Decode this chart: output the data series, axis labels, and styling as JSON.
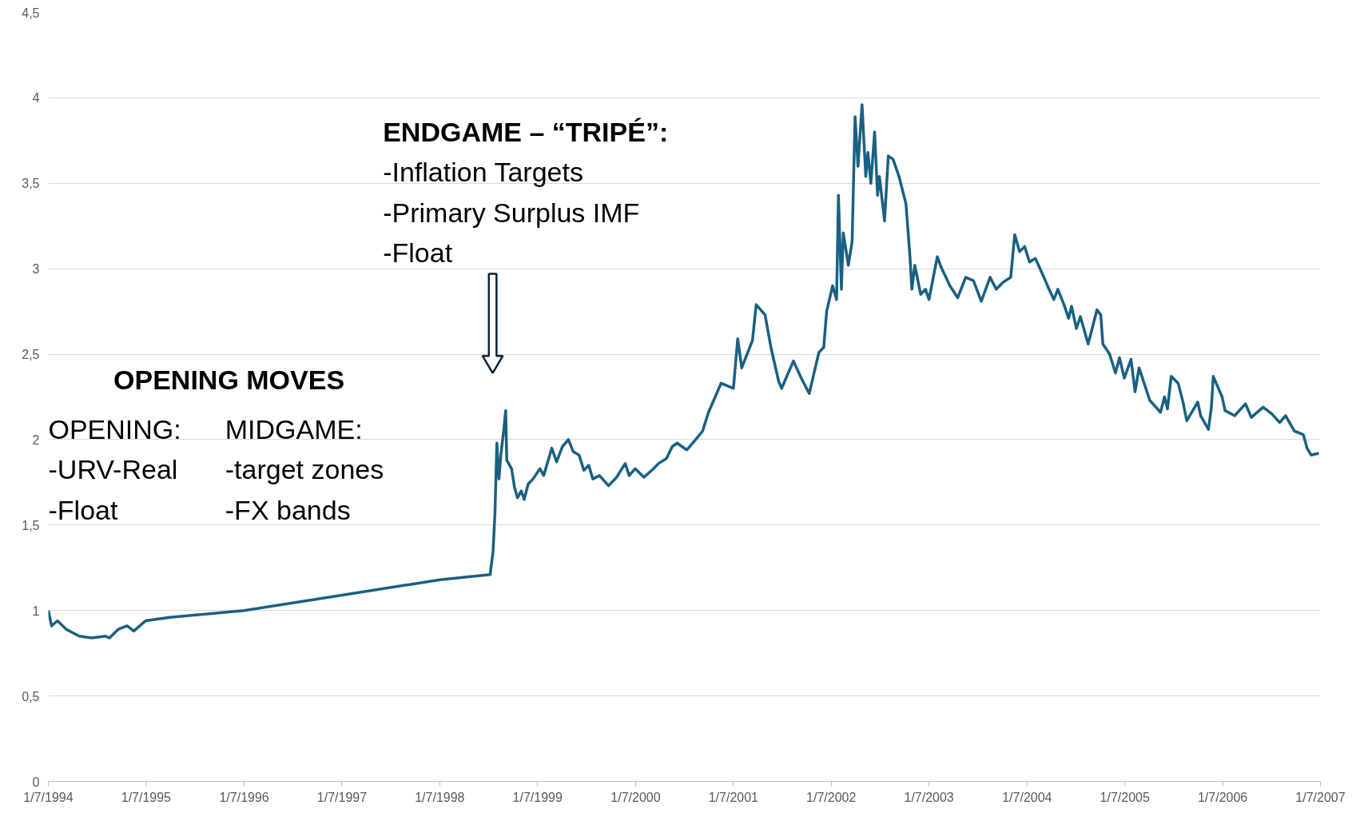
{
  "chart_data": {
    "type": "line",
    "xlim": [
      "1994-07-01",
      "2007-07-01"
    ],
    "ylim": [
      0,
      4.5
    ],
    "xticks": [
      {
        "value": "1994-07-01",
        "label": "1/7/1994"
      },
      {
        "value": "1995-07-01",
        "label": "1/7/1995"
      },
      {
        "value": "1996-07-01",
        "label": "1/7/1996"
      },
      {
        "value": "1997-07-01",
        "label": "1/7/1997"
      },
      {
        "value": "1998-07-01",
        "label": "1/7/1998"
      },
      {
        "value": "1999-07-01",
        "label": "1/7/1999"
      },
      {
        "value": "2000-07-01",
        "label": "1/7/2000"
      },
      {
        "value": "2001-07-01",
        "label": "1/7/2001"
      },
      {
        "value": "2002-07-01",
        "label": "1/7/2002"
      },
      {
        "value": "2003-07-01",
        "label": "1/7/2003"
      },
      {
        "value": "2004-07-01",
        "label": "1/7/2004"
      },
      {
        "value": "2005-07-01",
        "label": "1/7/2005"
      },
      {
        "value": "2006-07-01",
        "label": "1/7/2006"
      },
      {
        "value": "2007-07-01",
        "label": "1/7/2007"
      }
    ],
    "yticks": [
      0,
      {
        "value": 0.5,
        "label": "0,5"
      },
      1,
      {
        "value": 1.5,
        "label": "1,5"
      },
      2,
      {
        "value": 2.5,
        "label": "2,5"
      },
      3,
      {
        "value": 3.5,
        "label": "3,5"
      },
      4,
      {
        "value": 4.5,
        "label": "4,5"
      }
    ],
    "grid": "y",
    "marker": "none",
    "line_style": "solid",
    "annotations": [
      "OPENING MOVES",
      "OPENING:\n-URV-Real\n-Float",
      "MIDGAME:\n-target zones\n-FX bands",
      "ENDGAME – “TRIPÉ”:\n-Inflation Targets\n-Primary Surplus IMF\n-Float"
    ],
    "series": [
      {
        "color": "#1a6083",
        "x": [
          "1994-07-01",
          "1994-07-13",
          "1994-08-04",
          "1994-09-06",
          "1994-10-24",
          "1994-12-10",
          "1995-01-30",
          "1995-02-14",
          "1995-03-19",
          "1995-04-21",
          "1995-05-16",
          "1995-06-29",
          "1995-09-28",
          "1996-07-01",
          "1997-07-01",
          "1998-07-01",
          "1999-01-05",
          "1999-01-16",
          "1999-01-23",
          "1999-01-30",
          "1999-02-07",
          "1999-02-14",
          "1999-02-25",
          "1999-03-04",
          "1999-03-08",
          "1999-03-26",
          "1999-04-06",
          "1999-04-17",
          "1999-05-01",
          "1999-05-12",
          "1999-05-27",
          "1999-06-14",
          "1999-07-10",
          "1999-07-24",
          "1999-08-23",
          "1999-09-10",
          "1999-10-02",
          "1999-10-24",
          "1999-11-11",
          "1999-12-03",
          "1999-12-21",
          "2000-01-08",
          "2000-01-23",
          "2000-02-17",
          "2000-03-22",
          "2000-04-21",
          "2000-05-23",
          "2000-06-07",
          "2000-06-29",
          "2000-08-01",
          "2000-09-06",
          "2000-09-24",
          "2000-10-24",
          "2000-11-15",
          "2000-12-03",
          "2001-01-08",
          "2001-02-10",
          "2001-03-08",
          "2001-03-30",
          "2001-04-24",
          "2001-05-16",
          "2001-07-01",
          "2001-07-17",
          "2001-08-01",
          "2001-09-10",
          "2001-09-24",
          "2001-10-27",
          "2001-11-18",
          "2001-12-17",
          "2001-12-28",
          "2002-02-10",
          "2002-03-08",
          "2002-04-10",
          "2002-05-16",
          "2002-06-03",
          "2002-06-14",
          "2002-07-06",
          "2002-07-21",
          "2002-07-28",
          "2002-08-08",
          "2002-08-15",
          "2002-09-03",
          "2002-09-17",
          "2002-09-28",
          "2002-10-09",
          "2002-10-24",
          "2002-11-07",
          "2002-11-15",
          "2002-11-26",
          "2002-12-10",
          "2002-12-21",
          "2002-12-28",
          "2003-01-16",
          "2003-01-30",
          "2003-02-17",
          "2003-03-11",
          "2003-04-06",
          "2003-04-21",
          "2003-04-28",
          "2003-05-09",
          "2003-05-31",
          "2003-06-18",
          "2003-07-01",
          "2003-08-01",
          "2003-08-15",
          "2003-09-17",
          "2003-10-16",
          "2003-11-15",
          "2003-12-14",
          "2004-01-12",
          "2004-02-14",
          "2004-03-08",
          "2004-04-02",
          "2004-05-01",
          "2004-05-16",
          "2004-06-03",
          "2004-06-22",
          "2004-07-10",
          "2004-08-01",
          "2004-08-30",
          "2004-09-21",
          "2004-10-09",
          "2004-10-24",
          "2004-11-18",
          "2004-12-03",
          "2004-12-14",
          "2005-01-01",
          "2005-01-16",
          "2005-02-14",
          "2005-03-19",
          "2005-04-02",
          "2005-04-10",
          "2005-05-05",
          "2005-05-27",
          "2005-06-11",
          "2005-06-29",
          "2005-07-24",
          "2005-08-08",
          "2005-08-23",
          "2005-10-02",
          "2005-11-11",
          "2005-11-26",
          "2005-12-07",
          "2005-12-21",
          "2006-01-16",
          "2006-02-03",
          "2006-02-17",
          "2006-03-30",
          "2006-04-10",
          "2006-05-09",
          "2006-05-20",
          "2006-05-27",
          "2006-06-29",
          "2006-07-10",
          "2006-08-15",
          "2006-09-24",
          "2006-10-16",
          "2006-11-29",
          "2007-01-01",
          "2007-01-30",
          "2007-02-21",
          "2007-03-26",
          "2007-04-28",
          "2007-05-12",
          "2007-05-27",
          "2007-06-25"
        ],
        "values": [
          1.0,
          0.91,
          0.94,
          0.89,
          0.85,
          0.84,
          0.85,
          0.84,
          0.89,
          0.91,
          0.88,
          0.94,
          0.96,
          1.0,
          1.09,
          1.18,
          1.21,
          1.35,
          1.57,
          1.98,
          1.77,
          1.91,
          2.06,
          2.17,
          1.88,
          1.83,
          1.72,
          1.66,
          1.7,
          1.65,
          1.74,
          1.77,
          1.83,
          1.79,
          1.95,
          1.87,
          1.96,
          2.0,
          1.93,
          1.91,
          1.82,
          1.85,
          1.77,
          1.79,
          1.73,
          1.78,
          1.86,
          1.79,
          1.83,
          1.78,
          1.83,
          1.86,
          1.89,
          1.96,
          1.98,
          1.94,
          2.0,
          2.05,
          2.16,
          2.25,
          2.33,
          2.3,
          2.59,
          2.42,
          2.58,
          2.79,
          2.73,
          2.54,
          2.34,
          2.3,
          2.46,
          2.37,
          2.27,
          2.51,
          2.54,
          2.75,
          2.9,
          2.82,
          3.43,
          2.88,
          3.21,
          3.02,
          3.16,
          3.89,
          3.6,
          3.96,
          3.54,
          3.68,
          3.5,
          3.8,
          3.43,
          3.54,
          3.28,
          3.66,
          3.64,
          3.54,
          3.38,
          3.07,
          2.88,
          3.02,
          2.85,
          2.88,
          2.82,
          3.07,
          3.01,
          2.9,
          2.83,
          2.95,
          2.93,
          2.81,
          2.95,
          2.88,
          2.92,
          2.95,
          3.2,
          3.1,
          3.13,
          3.04,
          3.06,
          2.96,
          2.88,
          2.82,
          2.88,
          2.78,
          2.71,
          2.78,
          2.65,
          2.72,
          2.56,
          2.76,
          2.73,
          2.56,
          2.5,
          2.39,
          2.48,
          2.36,
          2.47,
          2.28,
          2.42,
          2.23,
          2.16,
          2.25,
          2.18,
          2.37,
          2.33,
          2.22,
          2.11,
          2.22,
          2.14,
          2.06,
          2.19,
          2.37,
          2.25,
          2.17,
          2.14,
          2.21,
          2.13,
          2.19,
          2.15,
          2.1,
          2.14,
          2.05,
          2.03,
          1.95,
          1.91,
          1.92
        ]
      }
    ]
  }
}
